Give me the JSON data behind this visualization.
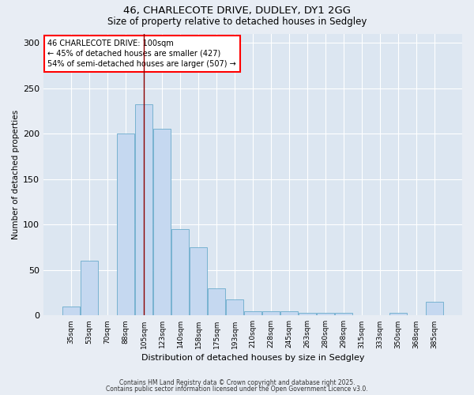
{
  "title1": "46, CHARLECOTE DRIVE, DUDLEY, DY1 2GG",
  "title2": "Size of property relative to detached houses in Sedgley",
  "xlabel": "Distribution of detached houses by size in Sedgley",
  "ylabel": "Number of detached properties",
  "categories": [
    "35sqm",
    "53sqm",
    "70sqm",
    "88sqm",
    "105sqm",
    "123sqm",
    "140sqm",
    "158sqm",
    "175sqm",
    "193sqm",
    "210sqm",
    "228sqm",
    "245sqm",
    "263sqm",
    "280sqm",
    "298sqm",
    "315sqm",
    "333sqm",
    "350sqm",
    "368sqm",
    "385sqm"
  ],
  "values": [
    10,
    60,
    0,
    200,
    232,
    205,
    95,
    75,
    30,
    18,
    5,
    5,
    5,
    3,
    3,
    3,
    0,
    0,
    3,
    0,
    15
  ],
  "bar_color": "#c5d8f0",
  "bar_edge_color": "#6aabcc",
  "annotation_line1": "46 CHARLECOTE DRIVE: 100sqm",
  "annotation_line2": "← 45% of detached houses are smaller (427)",
  "annotation_line3": "54% of semi-detached houses are larger (507) →",
  "redline_category_idx": 4,
  "redline_color": "#8b0000",
  "footer1": "Contains HM Land Registry data © Crown copyright and database right 2025.",
  "footer2": "Contains public sector information licensed under the Open Government Licence v3.0.",
  "bg_color": "#e8edf4",
  "plot_bg_color": "#dce6f1",
  "ylim": [
    0,
    310
  ],
  "yticks": [
    0,
    50,
    100,
    150,
    200,
    250,
    300
  ],
  "title_fontsize": 9.5,
  "subtitle_fontsize": 8.5
}
